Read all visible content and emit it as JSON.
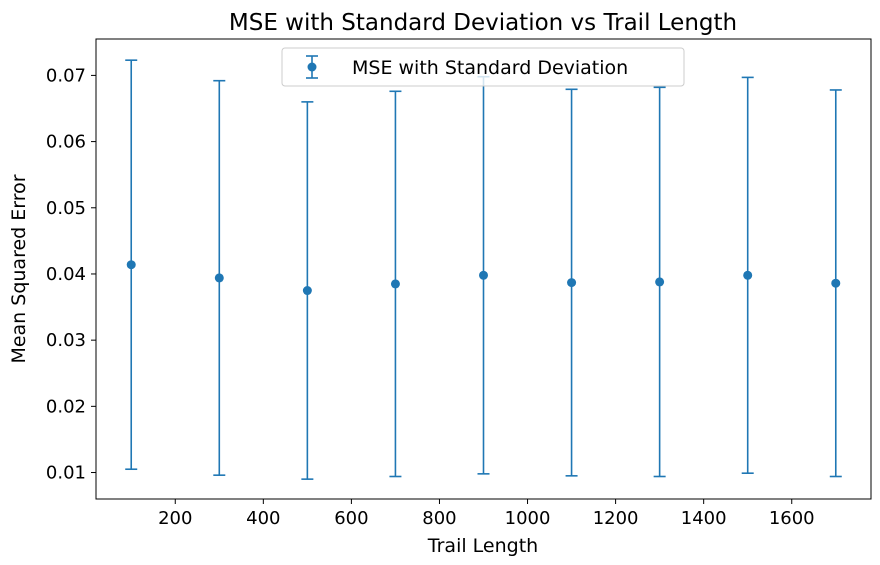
{
  "chart_data": {
    "type": "scatter",
    "title": "MSE with Standard Deviation vs Trail Length",
    "xlabel": "Trail Length",
    "ylabel": "Mean Squared Error",
    "xlim": [
      20,
      1780
    ],
    "ylim": [
      0.006,
      0.0755
    ],
    "xticks": [
      200,
      400,
      600,
      800,
      1000,
      1200,
      1400,
      1600
    ],
    "yticks": [
      0.01,
      0.02,
      0.03,
      0.04,
      0.05,
      0.06,
      0.07
    ],
    "grid": false,
    "legend": {
      "position": "upper center",
      "entries": [
        "MSE with Standard Deviation"
      ]
    },
    "colors": {
      "series": "#1f77b4"
    },
    "series": [
      {
        "name": "MSE with Standard Deviation",
        "x": [
          100,
          300,
          500,
          700,
          900,
          1100,
          1300,
          1500,
          1700
        ],
        "y": [
          0.0414,
          0.0394,
          0.0375,
          0.0385,
          0.0398,
          0.0387,
          0.0388,
          0.0398,
          0.0386
        ],
        "yerr": [
          0.0309,
          0.0298,
          0.0285,
          0.0291,
          0.03,
          0.0292,
          0.0294,
          0.0299,
          0.0292
        ]
      }
    ]
  }
}
